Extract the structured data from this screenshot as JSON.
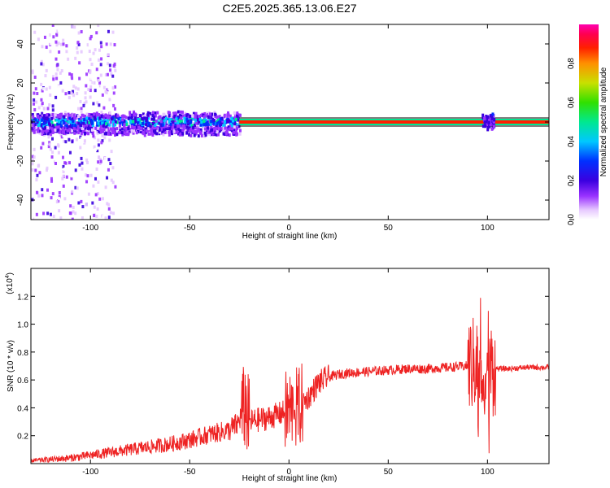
{
  "title": "C2E5.2025.365.13.06.E27",
  "chart_data": [
    {
      "type": "heatmap",
      "xlabel": "Height of straight line (km)",
      "ylabel": "Frequency (Hz)",
      "xlim": [
        -130,
        131
      ],
      "ylim": [
        -50,
        50
      ],
      "xticks": [
        -100,
        -50,
        0,
        50,
        100
      ],
      "yticks": [
        -40,
        -20,
        0,
        20,
        40
      ],
      "colorbar": {
        "label": "Normalized spectral amplitude",
        "range": [
          0.0,
          1.0
        ],
        "ticks": [
          0.0,
          0.2,
          0.4,
          0.6,
          0.8
        ]
      },
      "features": {
        "main_band_frequency": 0,
        "scatter_region_x": [
          -130,
          -100
        ],
        "broad_band_region_x": [
          -100,
          -25
        ],
        "narrow_line_region_x": [
          -25,
          131
        ],
        "disturbance_center_x": 100
      }
    },
    {
      "type": "line",
      "xlabel": "Height of straight line (km)",
      "ylabel": "SNR (10 * v/v)",
      "y_multiplier": "(x10",
      "y_multiplier_exponent": "4",
      "y_multiplier_close": ")",
      "xlim": [
        -130,
        131
      ],
      "ylim": [
        0,
        1.4
      ],
      "xticks": [
        -100,
        -50,
        0,
        50,
        100
      ],
      "yticks": [
        0.2,
        0.4,
        0.6,
        0.8,
        1.0,
        1.2
      ],
      "series": [
        {
          "name": "SNR",
          "color": "#ee2222",
          "x": [
            -130,
            -110,
            -100,
            -80,
            -60,
            -50,
            -40,
            -30,
            -26,
            -22,
            -20,
            -10,
            0,
            5,
            10,
            15,
            20,
            25,
            30,
            40,
            50,
            60,
            70,
            80,
            90,
            95,
            100,
            102,
            110,
            120,
            131
          ],
          "values": [
            0.02,
            0.04,
            0.06,
            0.1,
            0.14,
            0.17,
            0.21,
            0.24,
            0.28,
            0.42,
            0.3,
            0.33,
            0.38,
            0.4,
            0.48,
            0.58,
            0.62,
            0.64,
            0.65,
            0.66,
            0.67,
            0.68,
            0.68,
            0.69,
            0.7,
            0.72,
            0.68,
            0.68,
            0.68,
            0.69,
            0.69
          ]
        }
      ]
    }
  ]
}
